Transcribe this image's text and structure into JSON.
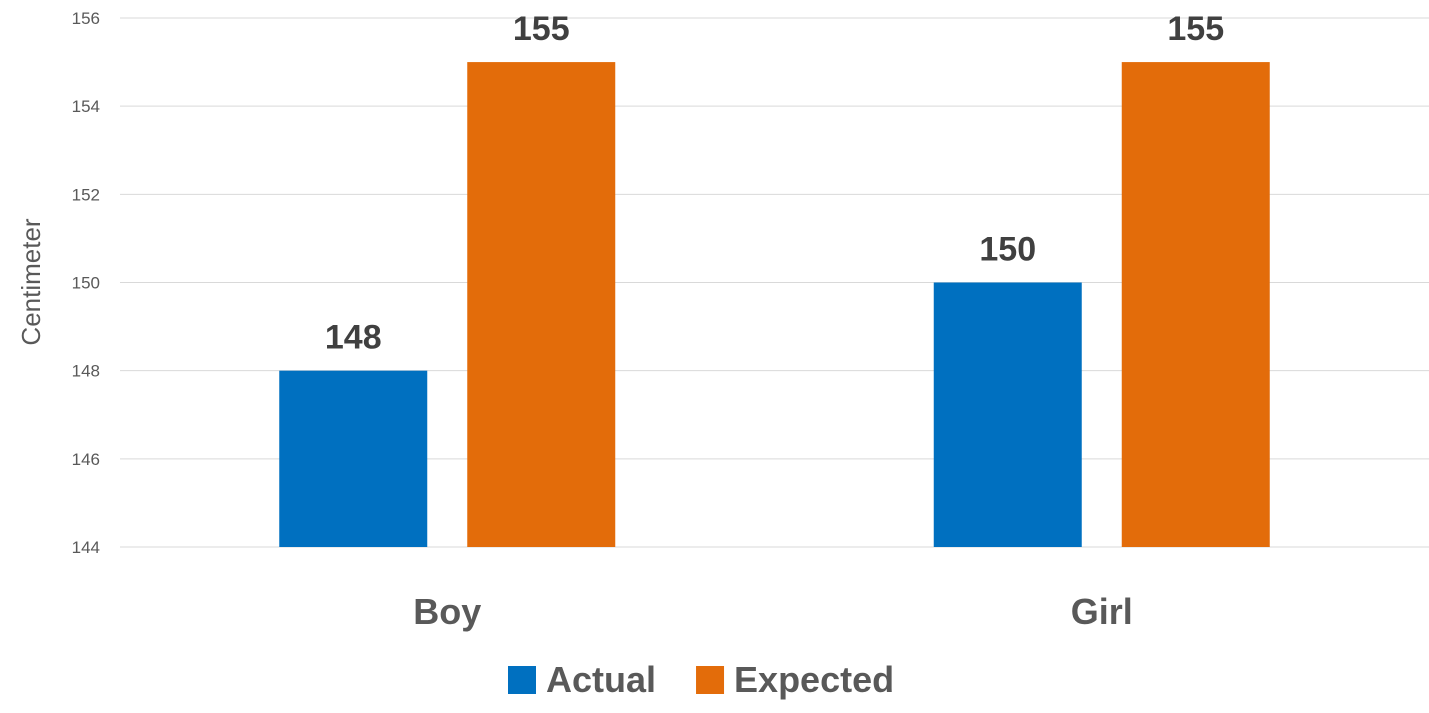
{
  "chart_data": {
    "type": "bar",
    "title": "",
    "xlabel": "",
    "ylabel": "Centimeter",
    "ylim": [
      144,
      156
    ],
    "yticks": [
      144,
      146,
      148,
      150,
      152,
      154,
      156
    ],
    "categories": [
      "Boy",
      "Girl"
    ],
    "series": [
      {
        "name": "Actual",
        "values": [
          148,
          150
        ],
        "color": "#0070C0"
      },
      {
        "name": "Expected",
        "values": [
          155,
          155
        ],
        "color": "#E36C0A"
      }
    ],
    "data_labels": true,
    "grid": true,
    "legend_position": "bottom"
  }
}
